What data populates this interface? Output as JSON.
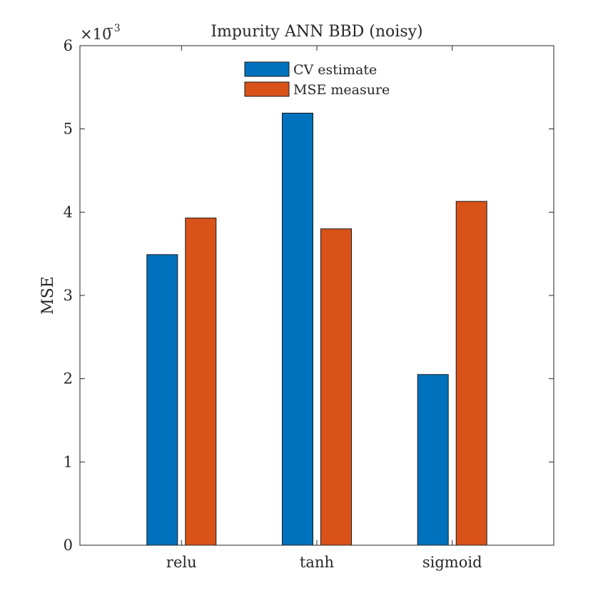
{
  "chart_data": {
    "type": "bar",
    "title": "Impurity ANN BBD (noisy)",
    "xlabel": "",
    "ylabel": "MSE",
    "categories": [
      "relu",
      "tanh",
      "sigmoid"
    ],
    "series": [
      {
        "name": "CV estimate",
        "color": "#0072BD",
        "values": [
          0.00349,
          0.00519,
          0.00205
        ]
      },
      {
        "name": "MSE measure",
        "color": "#D95319",
        "values": [
          0.00393,
          0.0038,
          0.00413
        ]
      }
    ],
    "ylim": [
      0,
      0.006
    ],
    "ytick_labels": [
      "0",
      "1",
      "2",
      "3",
      "4",
      "5",
      "6"
    ],
    "y_exponent": {
      "base": "×10",
      "power": "−3"
    },
    "grid": false,
    "legend_position": "top-center"
  }
}
